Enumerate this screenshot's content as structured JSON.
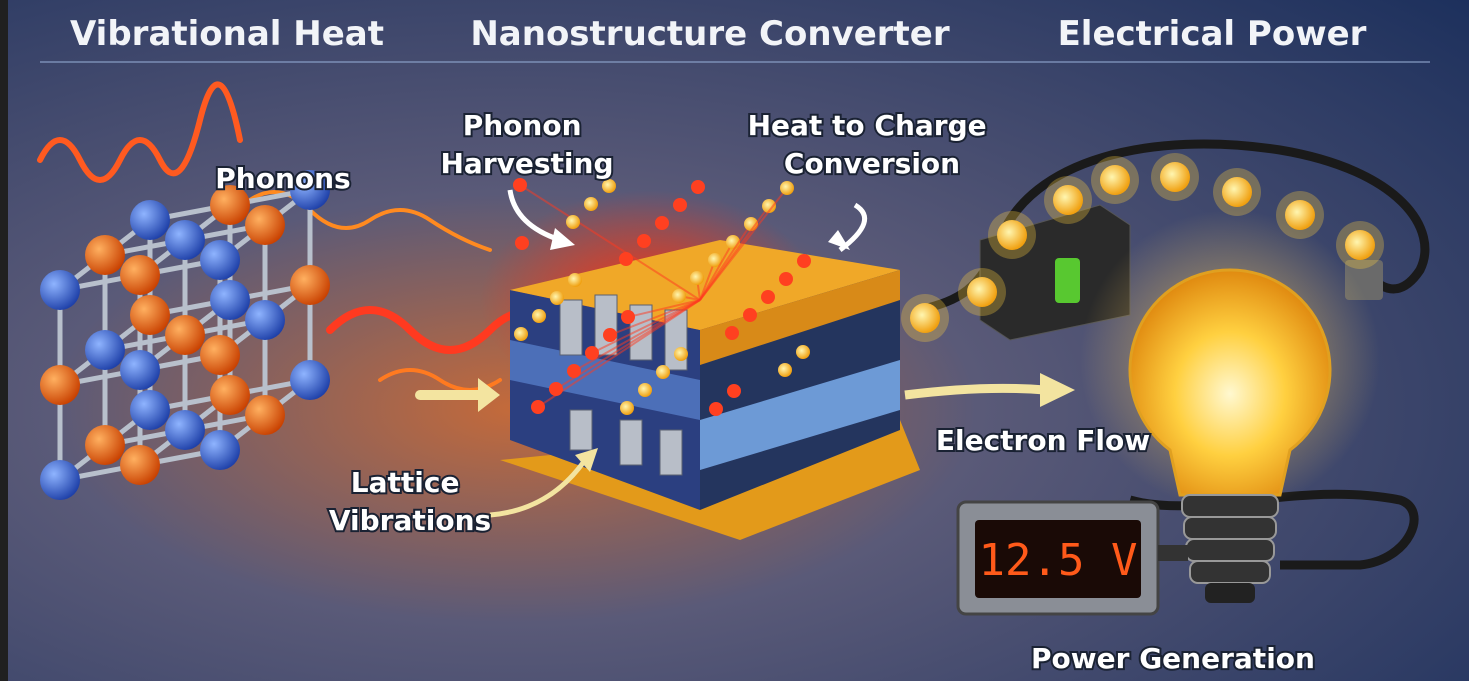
{
  "header": {
    "left": "Vibrational Heat",
    "center": "Nanostructure Converter",
    "right": "Electrical Power"
  },
  "labels": {
    "phonons": "Phonons",
    "harvesting": [
      "Phonon",
      "Harvesting"
    ],
    "conversion": [
      "Heat to Charge",
      "Conversion"
    ],
    "lattice": [
      "Lattice",
      "Vibrations"
    ],
    "electron_flow": "Electron Flow",
    "power_generation": "Power Generation"
  },
  "meter": {
    "reading": "12.5 V"
  }
}
